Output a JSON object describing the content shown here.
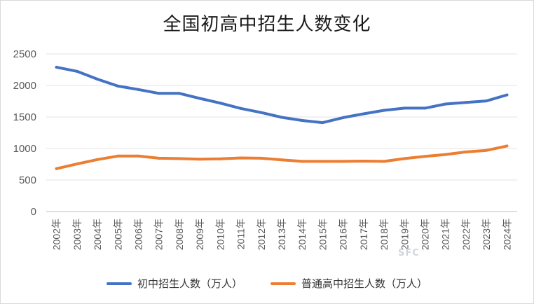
{
  "chart_data": {
    "type": "line",
    "title": "全国初高中招生人数变化",
    "xlabel": "",
    "ylabel": "",
    "ylim": [
      0,
      2500
    ],
    "yticks": [
      0,
      500,
      1000,
      1500,
      2000,
      2500
    ],
    "grid": true,
    "legend_position": "bottom",
    "categories": [
      "2002年",
      "2003年",
      "2004年",
      "2005年",
      "2006年",
      "2007年",
      "2008年",
      "2009年",
      "2010年",
      "2011年",
      "2012年",
      "2013年",
      "2014年",
      "2015年",
      "2016年",
      "2017年",
      "2018年",
      "2019年",
      "2020年",
      "2021年",
      "2022年",
      "2023年",
      "2024年"
    ],
    "series": [
      {
        "name": "初中招生人数（万人）",
        "color": "#4472c4",
        "values": [
          2290,
          2225,
          2100,
          1990,
          1935,
          1875,
          1875,
          1795,
          1720,
          1635,
          1570,
          1495,
          1445,
          1410,
          1490,
          1550,
          1605,
          1640,
          1640,
          1705,
          1730,
          1755,
          1850
        ]
      },
      {
        "name": "普通高中招生人数（万人）",
        "color": "#ed7d31",
        "values": [
          680,
          755,
          825,
          880,
          880,
          845,
          840,
          830,
          835,
          850,
          845,
          820,
          795,
          795,
          795,
          800,
          795,
          840,
          875,
          905,
          945,
          970,
          1040
        ]
      }
    ]
  },
  "watermark": "SFC"
}
